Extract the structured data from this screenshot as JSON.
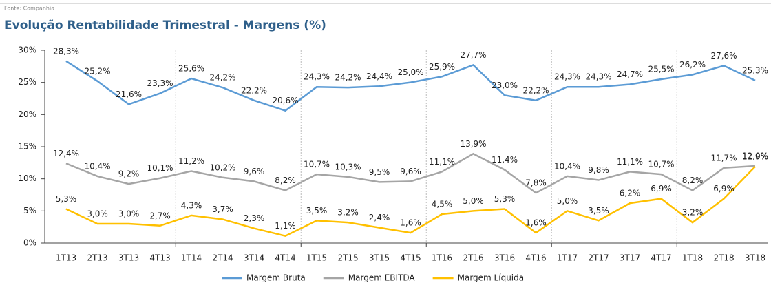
{
  "source": "Fonte: Companhia",
  "chart_data": {
    "type": "line",
    "title": "Evolução Rentabilidade Trimestral - Margens (%)",
    "categories": [
      "1T13",
      "2T13",
      "3T13",
      "4T13",
      "1T14",
      "2T14",
      "3T14",
      "4T14",
      "1T15",
      "2T15",
      "3T15",
      "4T15",
      "1T16",
      "2T16",
      "3T16",
      "4T16",
      "1T17",
      "2T17",
      "3T17",
      "4T17",
      "1T18",
      "2T18",
      "3T18"
    ],
    "series": [
      {
        "name": "Margem Bruta",
        "color": "#5b9bd5",
        "values": [
          28.3,
          25.2,
          21.6,
          23.3,
          25.6,
          24.2,
          22.2,
          20.6,
          24.3,
          24.2,
          24.4,
          25.0,
          25.9,
          27.7,
          23.0,
          22.2,
          24.3,
          24.3,
          24.7,
          25.5,
          26.2,
          27.6,
          25.3
        ],
        "value_labels": [
          "28,3%",
          "25,2%",
          "21,6%",
          "23,3%",
          "25,6%",
          "24,2%",
          "22,2%",
          "20,6%",
          "24,3%",
          "24,2%",
          "24,4%",
          "25,0%",
          "25,9%",
          "27,7%",
          "23,0%",
          "22,2%",
          "24,3%",
          "24,3%",
          "24,7%",
          "25,5%",
          "26,2%",
          "27,6%",
          "25,3%"
        ]
      },
      {
        "name": "Margem EBITDA",
        "color": "#a5a5a5",
        "values": [
          12.4,
          10.4,
          9.2,
          10.1,
          11.2,
          10.2,
          9.6,
          8.2,
          10.7,
          10.3,
          9.5,
          9.6,
          11.1,
          13.9,
          11.4,
          7.8,
          10.4,
          9.8,
          11.1,
          10.7,
          8.2,
          11.7,
          12.0
        ],
        "value_labels": [
          "12,4%",
          "10,4%",
          "9,2%",
          "10,1%",
          "11,2%",
          "10,2%",
          "9,6%",
          "8,2%",
          "10,7%",
          "10,3%",
          "9,5%",
          "9,6%",
          "11,1%",
          "13,9%",
          "11,4%",
          "7,8%",
          "10,4%",
          "9,8%",
          "11,1%",
          "10,7%",
          "8,2%",
          "11,7%",
          "12,0%"
        ]
      },
      {
        "name": "Margem Líquida",
        "color": "#ffc000",
        "values": [
          5.3,
          3.0,
          3.0,
          2.7,
          4.3,
          3.7,
          2.3,
          1.1,
          3.5,
          3.2,
          2.4,
          1.6,
          4.5,
          5.0,
          5.3,
          1.6,
          5.0,
          3.5,
          6.2,
          6.9,
          3.2,
          6.9,
          11.9
        ],
        "value_labels": [
          "5,3%",
          "3,0%",
          "3,0%",
          "2,7%",
          "4,3%",
          "3,7%",
          "2,3%",
          "1,1%",
          "3,5%",
          "3,2%",
          "2,4%",
          "1,6%",
          "4,5%",
          "5,0%",
          "5,3%",
          "1,6%",
          "5,0%",
          "3,5%",
          "6,2%",
          "6,9%",
          "3,2%",
          "6,9%",
          "11,9%"
        ]
      }
    ],
    "ylim": [
      0,
      30
    ],
    "yticks": [
      {
        "value": 0,
        "label": "0%"
      },
      {
        "value": 5,
        "label": "5%"
      },
      {
        "value": 10,
        "label": "10%"
      },
      {
        "value": 15,
        "label": "15%"
      },
      {
        "value": 20,
        "label": "20%"
      },
      {
        "value": 25,
        "label": "25%"
      },
      {
        "value": 30,
        "label": "30%"
      }
    ],
    "legend": "bottom"
  }
}
